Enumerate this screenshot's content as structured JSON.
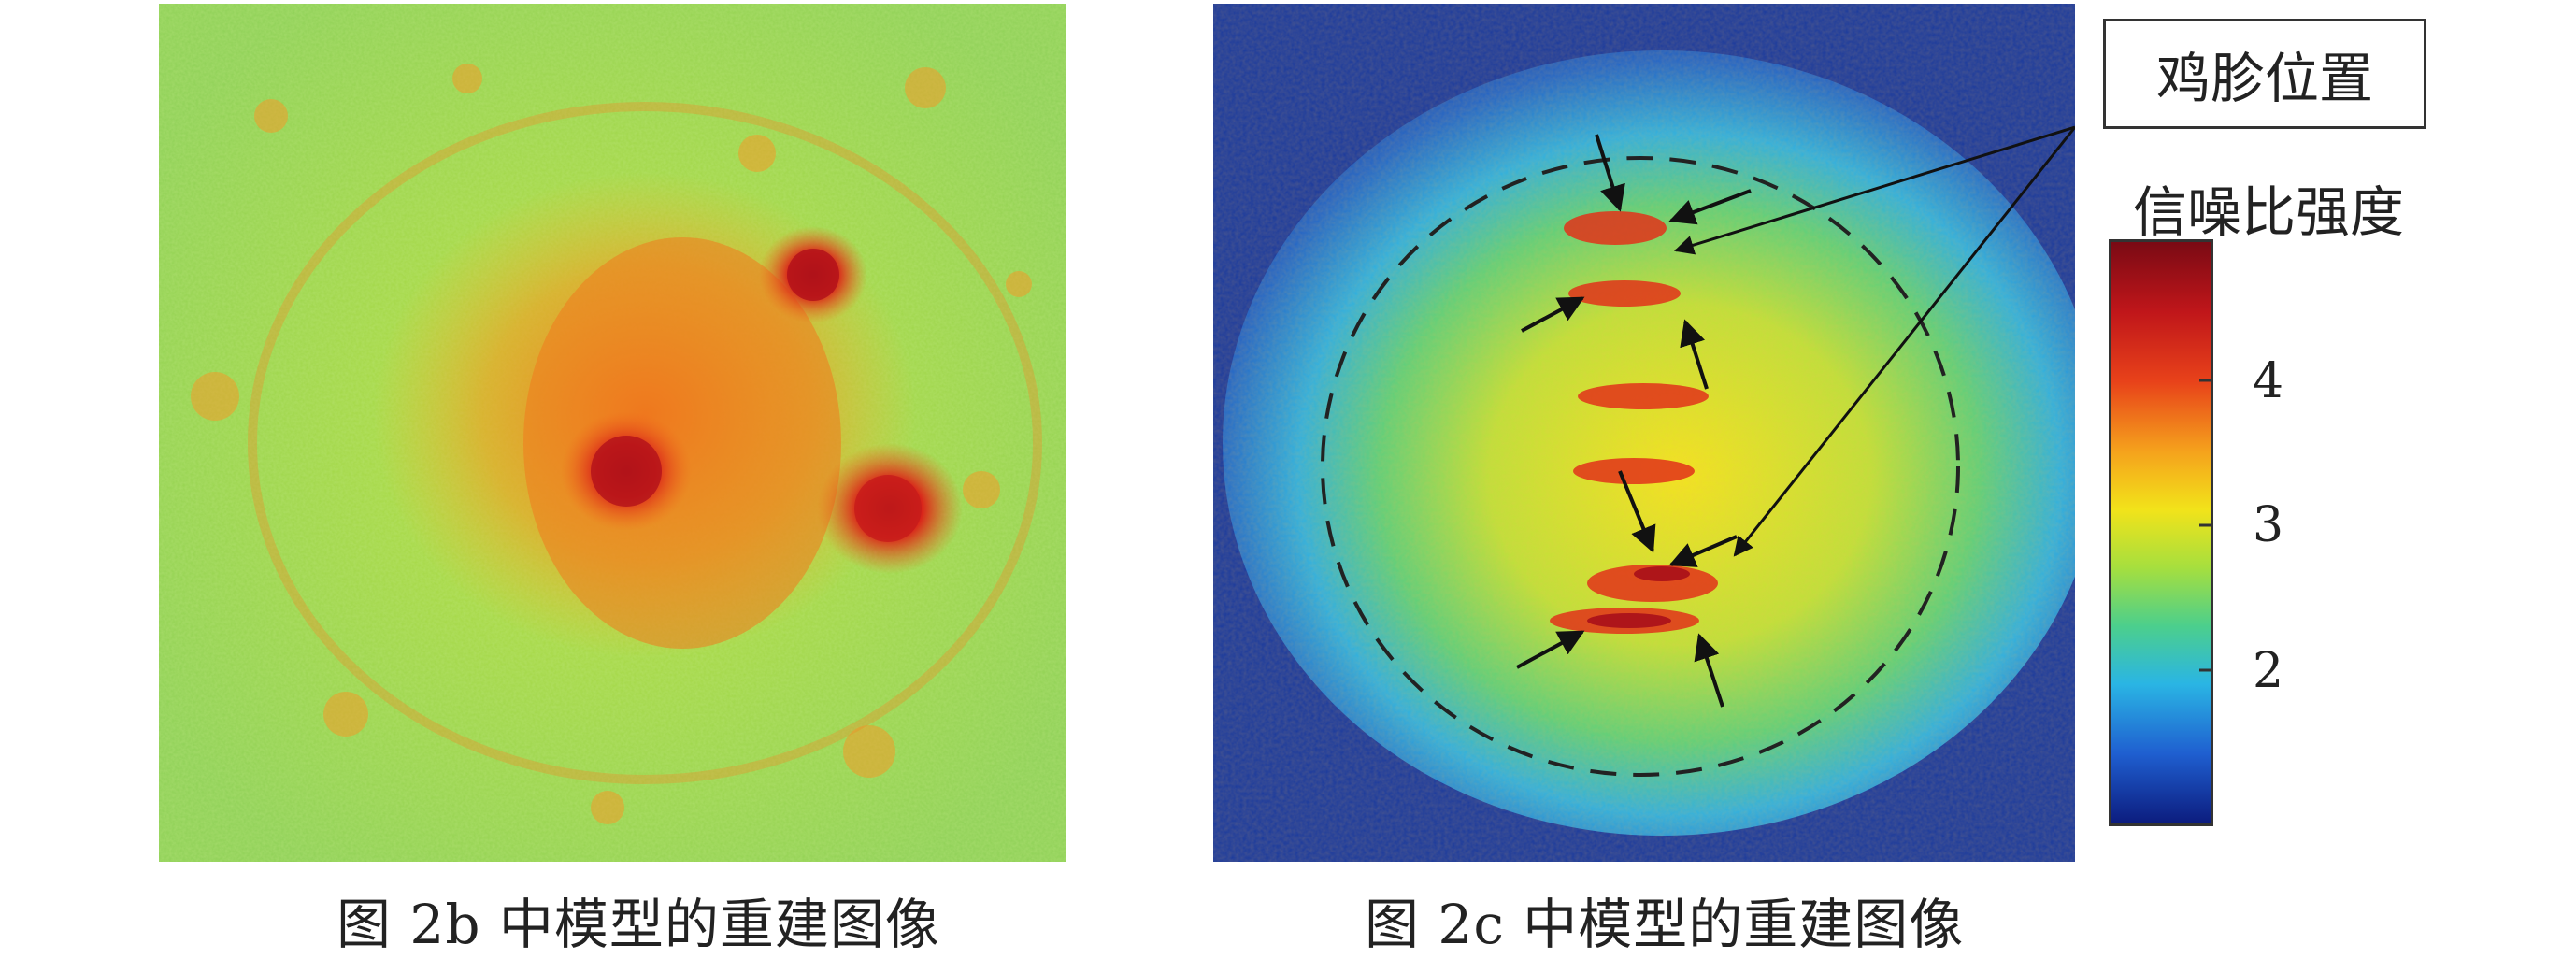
{
  "panel_left": {
    "caption": "图 2b 中模型的重建图像"
  },
  "panel_right": {
    "caption": "图 2c 中模型的重建图像",
    "annotation_label": "鸡胗位置"
  },
  "colorbar": {
    "title": "信噪比强度",
    "ticks": [
      "4",
      "3",
      "2"
    ]
  },
  "colors": {
    "background": "#ffffff",
    "colormap": [
      "#0a1f8a",
      "#1f5fd1",
      "#2fb6e6",
      "#4fd08c",
      "#b6e23a",
      "#f3e21a",
      "#f59a1a",
      "#e6321a",
      "#a8101a"
    ]
  },
  "icons": {
    "arrow": "black-arrow-icon",
    "region_outline": "dashed-ellipse-icon"
  }
}
